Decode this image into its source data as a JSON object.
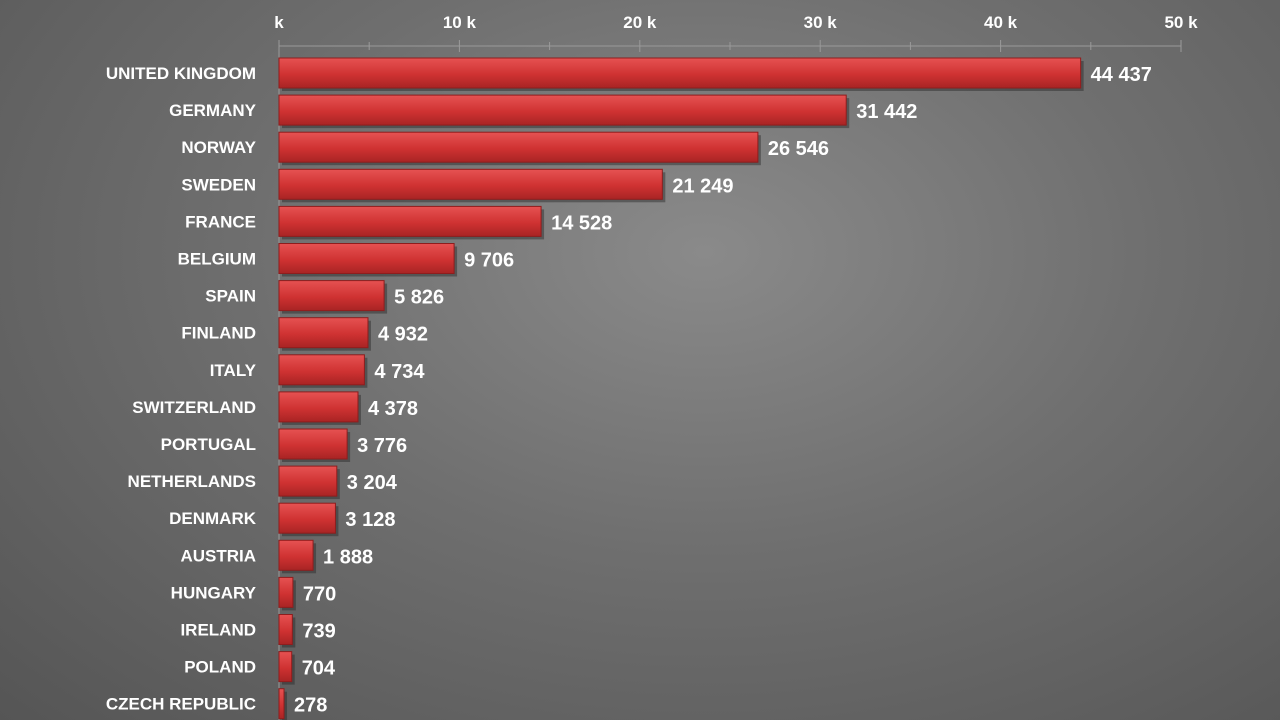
{
  "chart_data": {
    "type": "bar",
    "orientation": "horizontal",
    "categories": [
      "UNITED KINGDOM",
      "GERMANY",
      "NORWAY",
      "SWEDEN",
      "FRANCE",
      "BELGIUM",
      "SPAIN",
      "FINLAND",
      "ITALY",
      "SWITZERLAND",
      "PORTUGAL",
      "NETHERLANDS",
      "DENMARK",
      "AUSTRIA",
      "HUNGARY",
      "IRELAND",
      "POLAND",
      "CZECH REPUBLIC"
    ],
    "values": [
      44437,
      31442,
      26546,
      21249,
      14528,
      9706,
      5826,
      4932,
      4734,
      4378,
      3776,
      3204,
      3128,
      1888,
      770,
      739,
      704,
      278
    ],
    "value_labels": [
      "44 437",
      "31 442",
      "26 546",
      "21 249",
      "14 528",
      "9 706",
      "5 826",
      "4 932",
      "4 734",
      "4 378",
      "3 776",
      "3 204",
      "3 128",
      "1 888",
      "770",
      "739",
      "704",
      "278"
    ],
    "xlim": [
      0,
      50000
    ],
    "x_ticks": [
      0,
      10000,
      20000,
      30000,
      40000,
      50000
    ],
    "x_tick_labels": [
      "k",
      "10 k",
      "20 k",
      "30 k",
      "40 k",
      "50 k"
    ],
    "axis_position": "top",
    "grid": false,
    "bar_color": "#d63a3a",
    "bar_edge_color": "#8e1d1d"
  }
}
